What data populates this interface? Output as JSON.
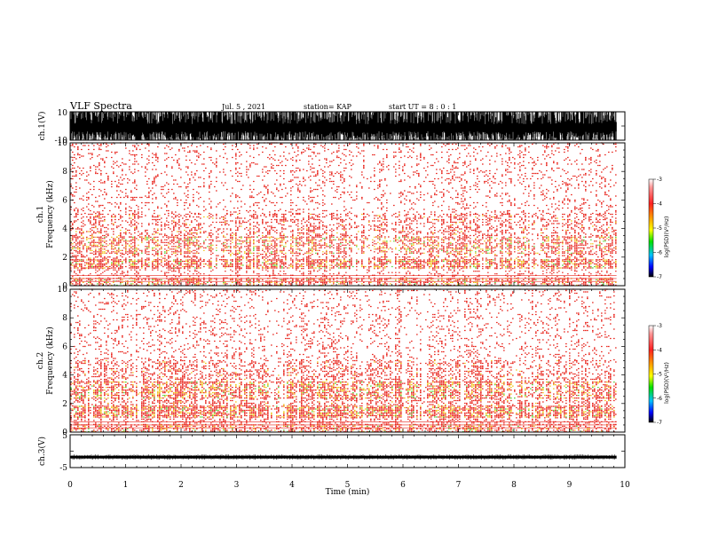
{
  "header": {
    "title": "VLF Spectra",
    "date": "Jul. 5 , 2021",
    "station": "station= KAP",
    "start_ut": "start UT =  8 : 0 : 1"
  },
  "colors": {
    "spec_low": "#ffffff",
    "spec_mid": "#e8261e",
    "spec_high": "#f0c419",
    "spec_peak": "#55d23a",
    "trace": "#000000"
  },
  "chart_data": [
    {
      "type": "line",
      "name": "ch1-waveform",
      "ylabel": "ch.1(V)",
      "xlim": [
        0,
        9.85
      ],
      "ylim": [
        -10,
        10
      ],
      "yticks": [
        "10",
        "-10"
      ],
      "x": [
        0,
        1,
        2,
        3,
        3.5,
        4,
        5,
        6,
        7,
        8,
        9,
        9.85
      ],
      "y_min": [
        -10,
        -10,
        -10,
        -10,
        -10,
        -10,
        -10,
        -10,
        -10,
        -10,
        -10,
        -10
      ],
      "y_max": [
        10,
        10,
        10,
        10,
        10,
        10,
        10,
        10,
        10,
        10,
        10,
        10
      ]
    },
    {
      "type": "heatmap",
      "name": "ch1-spectrogram",
      "ylabel_line1": "ch.1",
      "ylabel_line2": "Frequency (kHz)",
      "xlim": [
        0,
        10
      ],
      "ylim": [
        0,
        10
      ],
      "yticks": [
        "0",
        "2",
        "4",
        "6",
        "8",
        "10"
      ],
      "data_end_min": 9.85,
      "bands_khz": [
        [
          0.0,
          0.5,
          0.55
        ],
        [
          0.5,
          1.2,
          0.2
        ],
        [
          1.2,
          1.8,
          0.7
        ],
        [
          1.8,
          2.2,
          0.35
        ],
        [
          2.2,
          3.4,
          0.55
        ],
        [
          3.4,
          5.0,
          0.35
        ],
        [
          5.0,
          10.0,
          0.15
        ]
      ],
      "colorbar": {
        "label": "log(PSD)(V²/Hz)",
        "range": [
          -7,
          -3
        ],
        "ticks": [
          "-3",
          "-4",
          "-5",
          "-6",
          "-7"
        ]
      }
    },
    {
      "type": "heatmap",
      "name": "ch2-spectrogram",
      "ylabel_line1": "ch.2",
      "ylabel_line2": "Frequency (kHz)",
      "xlim": [
        0,
        10
      ],
      "ylim": [
        0,
        10
      ],
      "yticks": [
        "0",
        "2",
        "4",
        "6",
        "8",
        "10"
      ],
      "data_end_min": 9.85,
      "bands_khz": [
        [
          0.0,
          0.5,
          0.55
        ],
        [
          0.5,
          1.0,
          0.3
        ],
        [
          1.0,
          1.8,
          0.75
        ],
        [
          1.8,
          2.3,
          0.4
        ],
        [
          2.3,
          3.5,
          0.6
        ],
        [
          3.5,
          5.0,
          0.35
        ],
        [
          5.0,
          10.0,
          0.15
        ]
      ],
      "colorbar": {
        "label": "log(PSD)(V²/Hz)",
        "range": [
          -7,
          -3
        ],
        "ticks": [
          "-3",
          "-4",
          "-5",
          "-6",
          "-7"
        ]
      }
    },
    {
      "type": "line",
      "name": "ch3-waveform",
      "ylabel": "ch.3(V)",
      "xlim": [
        0,
        9.85
      ],
      "ylim": [
        -5,
        5
      ],
      "yticks": [
        "5",
        "-5"
      ],
      "x": [
        0,
        1,
        2,
        3,
        4,
        5,
        6,
        7,
        8,
        9,
        9.85
      ],
      "y_min": [
        -2.2,
        -2.2,
        -2.2,
        -2.2,
        -2.2,
        -2.2,
        -2.2,
        -2.2,
        -2.2,
        -2.2,
        -2.2
      ],
      "y_max": [
        -1.4,
        -1.4,
        -1.4,
        -1.4,
        -1.4,
        -1.4,
        -1.4,
        -1.4,
        -1.4,
        -1.4,
        -1.4
      ]
    }
  ],
  "xaxis": {
    "label": "Time (min)",
    "range": [
      0,
      10
    ],
    "ticks": [
      "0",
      "1",
      "2",
      "3",
      "4",
      "5",
      "6",
      "7",
      "8",
      "9",
      "10"
    ]
  }
}
